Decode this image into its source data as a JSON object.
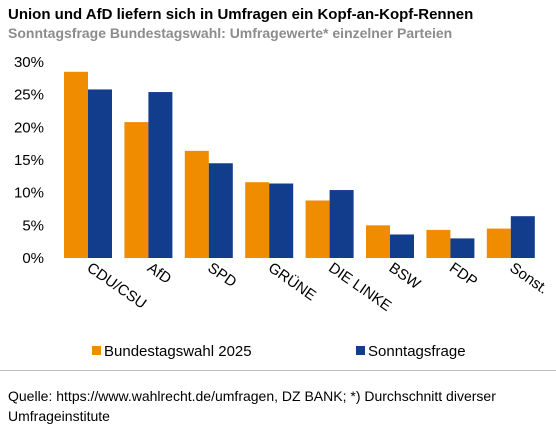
{
  "chart_data": {
    "type": "bar",
    "title": "Union und AfD liefern sich in Umfragen ein Kopf-an-Kopf-Rennen",
    "subtitle": "Sonntagsfrage Bundestagswahl: Umfragewerte* einzelner Parteien",
    "categories": [
      "CDU/CSU",
      "AfD",
      "SPD",
      "GRÜNE",
      "DIE LINKE",
      "BSW",
      "FDP",
      "Sonst."
    ],
    "series": [
      {
        "name": "Bundestagswahl 2025",
        "color": "#F08C00",
        "values": [
          28.5,
          20.8,
          16.4,
          11.6,
          8.8,
          5.0,
          4.3,
          4.5
        ]
      },
      {
        "name": "Sonntagsfrage",
        "color": "#123C8C",
        "values": [
          25.8,
          25.4,
          14.5,
          11.4,
          10.4,
          3.6,
          3.0,
          6.4
        ]
      }
    ],
    "y_ticks": [
      "0%",
      "5%",
      "10%",
      "15%",
      "20%",
      "25%",
      "30%"
    ],
    "ylim": [
      0,
      30
    ],
    "grid": false,
    "legend_position": "bottom"
  },
  "source_note": "Quelle: https://www.wahlrecht.de/umfragen, DZ BANK; *) Durchschnitt diverser Umfrageinstitute"
}
